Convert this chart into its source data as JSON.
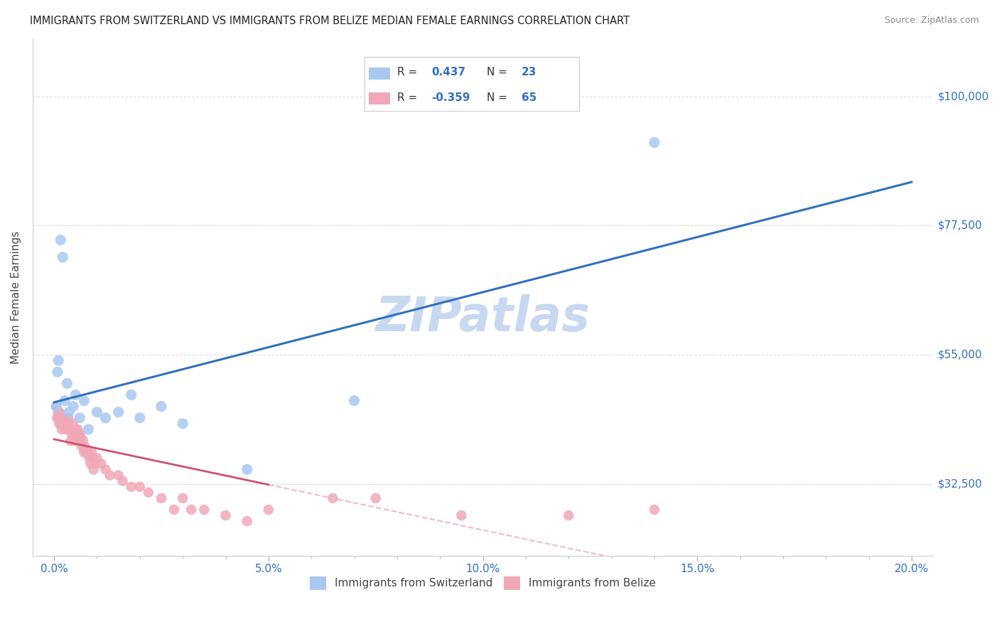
{
  "title": "IMMIGRANTS FROM SWITZERLAND VS IMMIGRANTS FROM BELIZE MEDIAN FEMALE EARNINGS CORRELATION CHART",
  "source": "Source: ZipAtlas.com",
  "ylabel": "Median Female Earnings",
  "xlabel_ticks": [
    "0.0%",
    "",
    "",
    "",
    "",
    "5.0%",
    "",
    "",
    "",
    "",
    "10.0%",
    "",
    "",
    "",
    "",
    "15.0%",
    "",
    "",
    "",
    "",
    "20.0%"
  ],
  "xlabel_vals": [
    0,
    1,
    2,
    3,
    4,
    5,
    6,
    7,
    8,
    9,
    10,
    11,
    12,
    13,
    14,
    15,
    16,
    17,
    18,
    19,
    20
  ],
  "xlabel_major_ticks": [
    0.0,
    5.0,
    10.0,
    15.0,
    20.0
  ],
  "xlabel_major_labels": [
    "0.0%",
    "5.0%",
    "10.0%",
    "15.0%",
    "20.0%"
  ],
  "ylabel_ticks": [
    "$32,500",
    "$55,000",
    "$77,500",
    "$100,000"
  ],
  "ylabel_vals": [
    32500,
    55000,
    77500,
    100000
  ],
  "xlim": [
    -0.5,
    20.5
  ],
  "ylim": [
    20000,
    110000
  ],
  "swiss_color": "#a8c8f0",
  "belize_color": "#f0a8b8",
  "swiss_line_color": "#3070c0",
  "belize_line_color": "#d05070",
  "belize_dash_color": "#f0b8c8",
  "watermark": "ZIPatlas",
  "watermark_color": "#c8d8f0",
  "background_color": "#ffffff",
  "grid_color": "#d8d8d8",
  "swiss_x": [
    0.05,
    0.08,
    0.1,
    0.15,
    0.2,
    0.25,
    0.3,
    0.35,
    0.45,
    0.5,
    0.6,
    0.7,
    0.8,
    1.0,
    1.2,
    1.5,
    1.8,
    2.0,
    2.5,
    3.0,
    4.5,
    7.0,
    14.0
  ],
  "swiss_y": [
    46000,
    52000,
    54000,
    75000,
    72000,
    47000,
    50000,
    45000,
    46000,
    48000,
    44000,
    47000,
    42000,
    45000,
    44000,
    45000,
    48000,
    44000,
    46000,
    43000,
    35000,
    47000,
    92000
  ],
  "belize_x": [
    0.05,
    0.07,
    0.09,
    0.1,
    0.12,
    0.13,
    0.15,
    0.16,
    0.18,
    0.2,
    0.22,
    0.24,
    0.25,
    0.27,
    0.28,
    0.3,
    0.32,
    0.33,
    0.35,
    0.38,
    0.4,
    0.42,
    0.44,
    0.45,
    0.48,
    0.5,
    0.52,
    0.55,
    0.57,
    0.6,
    0.62,
    0.65,
    0.68,
    0.7,
    0.72,
    0.75,
    0.8,
    0.82,
    0.85,
    0.88,
    0.9,
    0.92,
    0.95,
    1.0,
    1.1,
    1.2,
    1.3,
    1.5,
    1.6,
    1.8,
    2.0,
    2.2,
    2.5,
    2.8,
    3.0,
    3.2,
    3.5,
    4.0,
    4.5,
    5.0,
    6.5,
    7.5,
    9.5,
    12.0,
    14.0
  ],
  "belize_y": [
    46000,
    44000,
    45000,
    44000,
    43000,
    45000,
    43000,
    44000,
    42000,
    44000,
    43000,
    44000,
    43000,
    42000,
    44000,
    42000,
    43000,
    44000,
    42000,
    40000,
    42000,
    41000,
    43000,
    41000,
    40000,
    42000,
    40000,
    42000,
    41000,
    40000,
    41000,
    39000,
    40000,
    38000,
    39000,
    38000,
    38000,
    37000,
    36000,
    38000,
    37000,
    35000,
    36000,
    37000,
    36000,
    35000,
    34000,
    34000,
    33000,
    32000,
    32000,
    31000,
    30000,
    28000,
    30000,
    28000,
    28000,
    27000,
    26000,
    28000,
    30000,
    30000,
    27000,
    27000,
    28000
  ]
}
